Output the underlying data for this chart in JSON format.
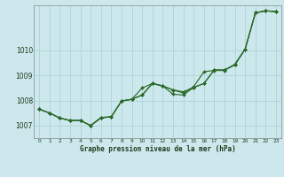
{
  "title": "Graphe pression niveau de la mer (hPa)",
  "bg_color": "#cce8ec",
  "grid_color": "#aad4d8",
  "line_color": "#2d6b2d",
  "xlim": [
    -0.5,
    23.5
  ],
  "ylim": [
    1006.5,
    1011.8
  ],
  "xtick_labels": [
    "0",
    "1",
    "2",
    "3",
    "4",
    "5",
    "6",
    "7",
    "8",
    "9",
    "10",
    "11",
    "12",
    "13",
    "14",
    "15",
    "16",
    "17",
    "18",
    "19",
    "20",
    "21",
    "22",
    "23"
  ],
  "yticks": [
    1007,
    1008,
    1009,
    1010
  ],
  "seriesA": [
    1007.65,
    1007.5,
    1007.3,
    1007.2,
    1007.2,
    1007.0,
    1007.3,
    1007.35,
    1007.98,
    1008.05,
    1008.5,
    1008.68,
    1008.58,
    1008.42,
    1008.3,
    1008.55,
    1009.15,
    1009.2,
    1009.2,
    1009.45,
    1010.05,
    1011.5,
    1011.58,
    1011.55
  ],
  "seriesB": [
    1007.65,
    1007.5,
    1007.3,
    1007.2,
    1007.2,
    1007.0,
    1007.32,
    1007.35,
    1007.98,
    1008.05,
    1008.22,
    1008.68,
    1008.58,
    1008.42,
    1008.35,
    1008.52,
    1008.68,
    1009.22,
    1009.22,
    1009.42,
    1010.05,
    1011.5,
    1011.58,
    1011.55
  ],
  "seriesC": [
    1007.65,
    1007.5,
    1007.3,
    1007.2,
    1007.2,
    1007.0,
    1007.32,
    1007.35,
    1007.98,
    1008.05,
    1008.22,
    1008.68,
    1008.58,
    1008.25,
    1008.22,
    1008.52,
    1008.68,
    1009.22,
    1009.22,
    1009.42,
    1010.05,
    1011.5,
    1011.58,
    1011.55
  ]
}
